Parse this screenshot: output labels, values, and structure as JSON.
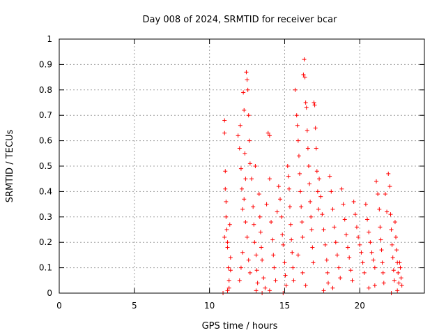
{
  "chart_data": {
    "type": "scatter",
    "title": "Day 008 of 2024, SRMTID for receiver bcar",
    "xlabel": "GPS time / hours",
    "ylabel": "SRMTID / TECUs",
    "xlim": [
      0,
      24.3
    ],
    "ylim": [
      0,
      1
    ],
    "xticks": [
      0,
      5,
      10,
      15,
      20
    ],
    "xtick_labels": [
      "0",
      "5",
      "10",
      "15",
      "20"
    ],
    "yticks": [
      0,
      0.1,
      0.2,
      0.3,
      0.4,
      0.5,
      0.6,
      0.7,
      0.8,
      0.9,
      1
    ],
    "ytick_labels": [
      "0",
      "0.1",
      "0.2",
      "0.3",
      "0.4",
      "0.5",
      "0.6",
      "0.7",
      "0.8",
      "0.9",
      "1"
    ],
    "grid": true,
    "marker": "+",
    "series": [
      {
        "name": "SRMTID",
        "color": "#ff0000",
        "points": [
          [
            10.9,
            0.0
          ],
          [
            11.0,
            0.68
          ],
          [
            11.0,
            0.63
          ],
          [
            11.05,
            0.48
          ],
          [
            11.05,
            0.41
          ],
          [
            11.1,
            0.36
          ],
          [
            11.1,
            0.3
          ],
          [
            11.15,
            0.25
          ],
          [
            11.2,
            0.2
          ],
          [
            11.2,
            0.18
          ],
          [
            11.25,
            0.1
          ],
          [
            11.3,
            0.05
          ],
          [
            11.3,
            0.02
          ],
          [
            11.35,
            0.27
          ],
          [
            11.4,
            0.14
          ],
          [
            11.4,
            0.09
          ],
          [
            11.2,
            0.01
          ],
          [
            11.0,
            0.22
          ],
          [
            11.9,
            0.62
          ],
          [
            12.0,
            0.57
          ],
          [
            12.05,
            0.66
          ],
          [
            12.1,
            0.49
          ],
          [
            12.15,
            0.41
          ],
          [
            12.2,
            0.33
          ],
          [
            12.25,
            0.79
          ],
          [
            12.3,
            0.72
          ],
          [
            12.35,
            0.55
          ],
          [
            12.4,
            0.45
          ],
          [
            12.45,
            0.87
          ],
          [
            12.5,
            0.84
          ],
          [
            12.55,
            0.8
          ],
          [
            12.6,
            0.7
          ],
          [
            12.65,
            0.6
          ],
          [
            12.7,
            0.51
          ],
          [
            12.3,
            0.37
          ],
          [
            12.4,
            0.28
          ],
          [
            12.5,
            0.22
          ],
          [
            12.2,
            0.16
          ],
          [
            12.1,
            0.1
          ],
          [
            12.0,
            0.05
          ],
          [
            12.6,
            0.13
          ],
          [
            12.7,
            0.08
          ],
          [
            12.8,
            0.45
          ],
          [
            12.9,
            0.34
          ],
          [
            12.95,
            0.27
          ],
          [
            13.0,
            0.2
          ],
          [
            13.05,
            0.5
          ],
          [
            13.1,
            0.15
          ],
          [
            13.15,
            0.09
          ],
          [
            13.2,
            0.04
          ],
          [
            13.3,
            0.39
          ],
          [
            13.35,
            0.3
          ],
          [
            13.4,
            0.24
          ],
          [
            13.45,
            0.18
          ],
          [
            13.5,
            0.13
          ],
          [
            13.6,
            0.06
          ],
          [
            13.7,
            0.02
          ],
          [
            13.8,
            0.35
          ],
          [
            13.9,
            0.63
          ],
          [
            14.0,
            0.62
          ],
          [
            14.0,
            0.45
          ],
          [
            14.1,
            0.28
          ],
          [
            14.2,
            0.21
          ],
          [
            14.25,
            0.15
          ],
          [
            14.3,
            0.1
          ],
          [
            14.4,
            0.05
          ],
          [
            13.1,
            0.01
          ],
          [
            13.5,
            0.0
          ],
          [
            14.0,
            0.01
          ],
          [
            14.5,
            0.32
          ],
          [
            14.6,
            0.42
          ],
          [
            14.7,
            0.37
          ],
          [
            14.8,
            0.3
          ],
          [
            14.85,
            0.23
          ],
          [
            14.9,
            0.19
          ],
          [
            15.0,
            0.12
          ],
          [
            15.05,
            0.07
          ],
          [
            15.1,
            0.03
          ],
          [
            15.2,
            0.5
          ],
          [
            15.25,
            0.46
          ],
          [
            15.3,
            0.41
          ],
          [
            15.35,
            0.34
          ],
          [
            15.4,
            0.27
          ],
          [
            15.45,
            0.21
          ],
          [
            15.5,
            0.16
          ],
          [
            15.55,
            0.1
          ],
          [
            15.6,
            0.05
          ],
          [
            14.9,
            0.0
          ],
          [
            15.7,
            0.8
          ],
          [
            15.8,
            0.7
          ],
          [
            15.85,
            0.66
          ],
          [
            15.9,
            0.6
          ],
          [
            15.95,
            0.54
          ],
          [
            16.0,
            0.47
          ],
          [
            16.05,
            0.4
          ],
          [
            16.1,
            0.34
          ],
          [
            16.15,
            0.28
          ],
          [
            16.2,
            0.22
          ],
          [
            16.25,
            0.86
          ],
          [
            16.3,
            0.92
          ],
          [
            16.35,
            0.85
          ],
          [
            16.4,
            0.75
          ],
          [
            16.45,
            0.73
          ],
          [
            16.5,
            0.64
          ],
          [
            16.55,
            0.57
          ],
          [
            16.6,
            0.5
          ],
          [
            16.65,
            0.43
          ],
          [
            16.7,
            0.36
          ],
          [
            16.75,
            0.3
          ],
          [
            16.8,
            0.25
          ],
          [
            16.85,
            0.18
          ],
          [
            16.9,
            0.12
          ],
          [
            16.95,
            0.75
          ],
          [
            17.0,
            0.74
          ],
          [
            17.05,
            0.65
          ],
          [
            17.1,
            0.57
          ],
          [
            17.15,
            0.48
          ],
          [
            17.2,
            0.4
          ],
          [
            17.25,
            0.33
          ],
          [
            16.2,
            0.08
          ],
          [
            16.4,
            0.03
          ],
          [
            15.9,
            0.15
          ],
          [
            17.3,
            0.45
          ],
          [
            17.4,
            0.38
          ],
          [
            17.5,
            0.31
          ],
          [
            17.6,
            0.25
          ],
          [
            17.7,
            0.19
          ],
          [
            17.8,
            0.13
          ],
          [
            17.85,
            0.08
          ],
          [
            17.9,
            0.04
          ],
          [
            18.0,
            0.46
          ],
          [
            18.1,
            0.4
          ],
          [
            18.2,
            0.33
          ],
          [
            18.3,
            0.26
          ],
          [
            18.4,
            0.2
          ],
          [
            18.5,
            0.15
          ],
          [
            18.6,
            0.1
          ],
          [
            18.7,
            0.06
          ],
          [
            18.8,
            0.41
          ],
          [
            18.9,
            0.35
          ],
          [
            19.0,
            0.29
          ],
          [
            19.1,
            0.23
          ],
          [
            19.2,
            0.18
          ],
          [
            19.3,
            0.14
          ],
          [
            19.4,
            0.09
          ],
          [
            19.5,
            0.05
          ],
          [
            17.6,
            0.01
          ],
          [
            18.2,
            0.02
          ],
          [
            19.6,
            0.36
          ],
          [
            19.7,
            0.31
          ],
          [
            19.8,
            0.26
          ],
          [
            19.9,
            0.22
          ],
          [
            20.0,
            0.19
          ],
          [
            20.1,
            0.16
          ],
          [
            20.2,
            0.12
          ],
          [
            20.3,
            0.08
          ],
          [
            20.4,
            0.35
          ],
          [
            20.5,
            0.29
          ],
          [
            20.6,
            0.24
          ],
          [
            20.7,
            0.2
          ],
          [
            20.8,
            0.16
          ],
          [
            20.9,
            0.13
          ],
          [
            21.0,
            0.1
          ],
          [
            21.1,
            0.44
          ],
          [
            21.2,
            0.39
          ],
          [
            21.3,
            0.33
          ],
          [
            21.35,
            0.26
          ],
          [
            21.4,
            0.21
          ],
          [
            21.45,
            0.17
          ],
          [
            21.5,
            0.12
          ],
          [
            21.55,
            0.08
          ],
          [
            21.6,
            0.04
          ],
          [
            20.6,
            0.02
          ],
          [
            21.0,
            0.03
          ],
          [
            21.7,
            0.39
          ],
          [
            21.8,
            0.32
          ],
          [
            21.9,
            0.47
          ],
          [
            22.0,
            0.42
          ],
          [
            22.05,
            0.31
          ],
          [
            22.1,
            0.25
          ],
          [
            22.15,
            0.19
          ],
          [
            22.2,
            0.14
          ],
          [
            22.25,
            0.09
          ],
          [
            22.3,
            0.05
          ],
          [
            22.35,
            0.28
          ],
          [
            22.4,
            0.22
          ],
          [
            22.45,
            0.17
          ],
          [
            22.5,
            0.12
          ],
          [
            22.55,
            0.08
          ],
          [
            22.6,
            0.04
          ],
          [
            22.65,
            0.12
          ],
          [
            22.7,
            0.1
          ],
          [
            22.75,
            0.06
          ],
          [
            22.8,
            0.03
          ],
          [
            22.1,
            0.0
          ],
          [
            22.5,
            0.01
          ]
        ]
      }
    ]
  }
}
